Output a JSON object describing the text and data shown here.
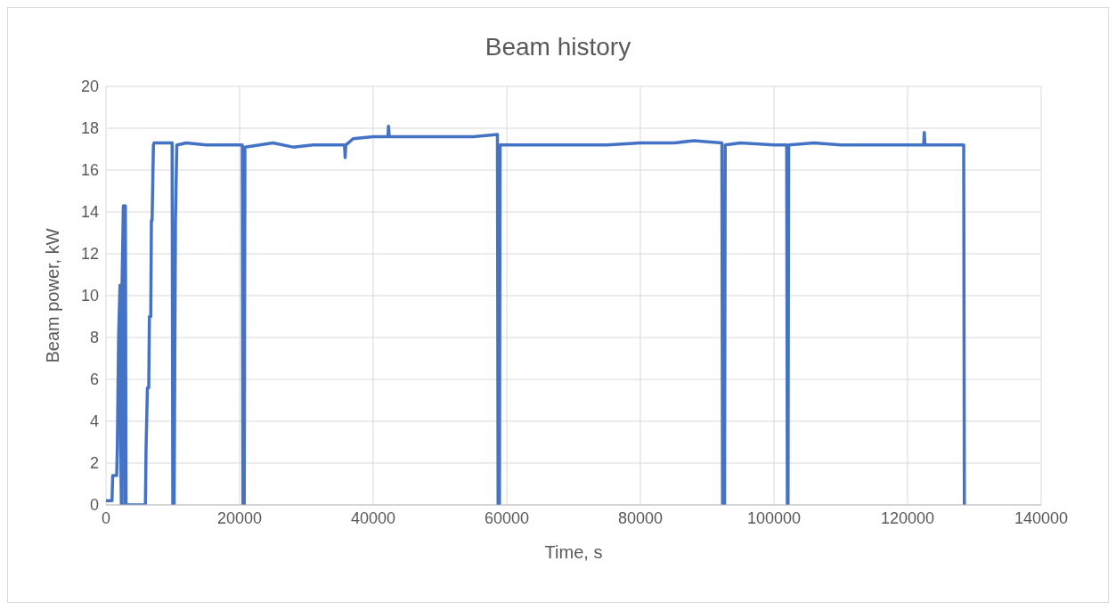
{
  "chart_data": {
    "type": "line",
    "title": "Beam history",
    "xlabel": "Time, s",
    "ylabel": "Beam power, kW",
    "xlim": [
      0,
      140000
    ],
    "xticks": [
      0,
      20000,
      40000,
      60000,
      80000,
      100000,
      120000,
      140000
    ],
    "ylim": [
      0,
      20
    ],
    "yticks": [
      0,
      2,
      4,
      6,
      8,
      10,
      12,
      14,
      16,
      18,
      20
    ],
    "grid": true,
    "marker": "none",
    "line_style": "solid",
    "series": [
      {
        "color": "#4472c4",
        "x": [
          0,
          900,
          1000,
          1600,
          1700,
          1800,
          1900,
          2100,
          2200,
          2300,
          2400,
          2600,
          2800,
          2900,
          3000,
          3200,
          5900,
          6000,
          6200,
          6400,
          6500,
          6700,
          6800,
          6900,
          7100,
          7200,
          8000,
          9000,
          9900,
          10000,
          10200,
          10400,
          10600,
          10700,
          12000,
          15000,
          18000,
          20300,
          20400,
          20500,
          20700,
          20800,
          23000,
          25000,
          28000,
          31000,
          33000,
          35700,
          35800,
          35900,
          37000,
          40000,
          42200,
          42300,
          42400,
          45000,
          50000,
          55000,
          58600,
          58700,
          58900,
          59000,
          65000,
          70000,
          75000,
          80000,
          85000,
          88000,
          92200,
          92300,
          92600,
          92700,
          95000,
          100000,
          101900,
          102000,
          102100,
          102200,
          106000,
          110000,
          115000,
          120000,
          122400,
          122500,
          122600,
          125000,
          128400,
          128500
        ],
        "values": [
          0.2,
          0.2,
          1.4,
          1.4,
          2.8,
          5.6,
          8.2,
          10.5,
          2.8,
          0,
          10.5,
          14.3,
          0,
          14.3,
          0,
          0,
          0,
          2.7,
          5.6,
          5.6,
          9.0,
          9.0,
          13.6,
          13.6,
          17.2,
          17.3,
          17.3,
          17.3,
          17.3,
          0,
          0,
          13.6,
          17.2,
          17.2,
          17.3,
          17.2,
          17.2,
          17.2,
          17.2,
          0,
          0,
          17.1,
          17.2,
          17.3,
          17.1,
          17.2,
          17.2,
          17.2,
          16.6,
          17.2,
          17.5,
          17.6,
          17.6,
          18.1,
          17.6,
          17.6,
          17.6,
          17.6,
          17.7,
          0,
          0,
          17.2,
          17.2,
          17.2,
          17.2,
          17.3,
          17.3,
          17.4,
          17.3,
          0,
          0,
          17.2,
          17.3,
          17.2,
          17.2,
          0,
          0,
          17.2,
          17.3,
          17.2,
          17.2,
          17.2,
          17.2,
          17.8,
          17.2,
          17.2,
          17.2,
          0
        ]
      }
    ]
  }
}
